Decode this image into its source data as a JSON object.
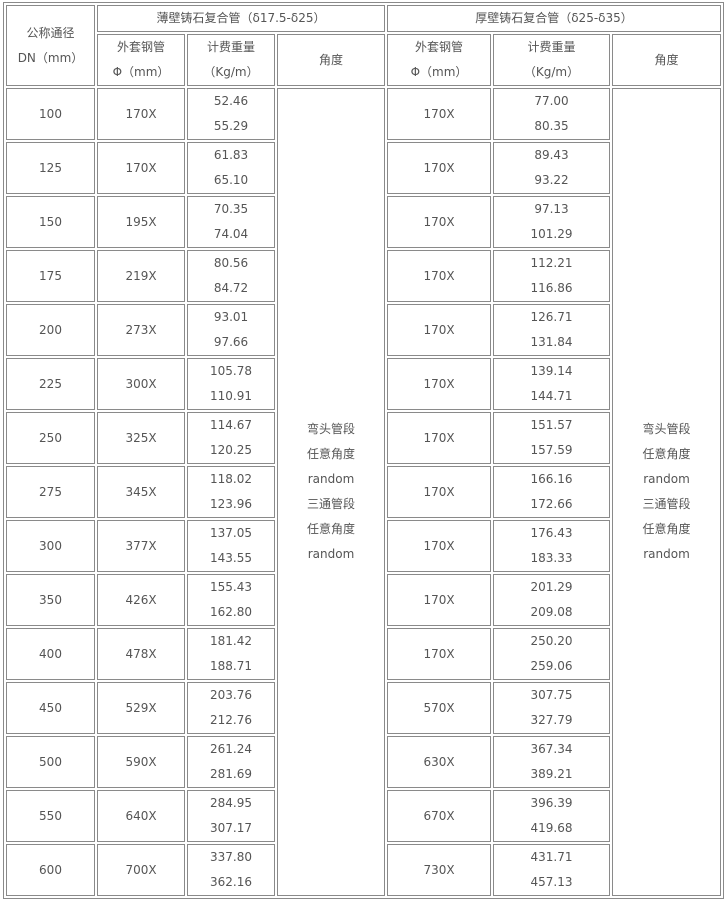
{
  "header": {
    "dn_label": "公称通径",
    "dn_unit": "DN（mm）",
    "thin_group": "薄壁铸石复合管（δ17.5-δ25）",
    "thick_group": "厚壁铸石复合管（δ25-δ35）",
    "steel_label": "外套钢管",
    "steel_unit": "Φ（mm）",
    "weight_label": "计费重量",
    "weight_unit": "（Kg/m）",
    "angle_label": "角度"
  },
  "angle_note": [
    "弯头管段",
    "任意角度",
    "random",
    "三通管段",
    "任意角度",
    "random"
  ],
  "rows": [
    {
      "dn": "100",
      "thin_steel": "170X",
      "thin_w": [
        "52.46",
        "55.29"
      ],
      "thick_steel": "170X",
      "thick_w": [
        "77.00",
        "80.35"
      ]
    },
    {
      "dn": "125",
      "thin_steel": "170X",
      "thin_w": [
        "61.83",
        "65.10"
      ],
      "thick_steel": "170X",
      "thick_w": [
        "89.43",
        "93.22"
      ]
    },
    {
      "dn": "150",
      "thin_steel": "195X",
      "thin_w": [
        "70.35",
        "74.04"
      ],
      "thick_steel": "170X",
      "thick_w": [
        "97.13",
        "101.29"
      ]
    },
    {
      "dn": "175",
      "thin_steel": "219X",
      "thin_w": [
        "80.56",
        "84.72"
      ],
      "thick_steel": "170X",
      "thick_w": [
        "112.21",
        "116.86"
      ]
    },
    {
      "dn": "200",
      "thin_steel": "273X",
      "thin_w": [
        "93.01",
        "97.66"
      ],
      "thick_steel": "170X",
      "thick_w": [
        "126.71",
        "131.84"
      ]
    },
    {
      "dn": "225",
      "thin_steel": "300X",
      "thin_w": [
        "105.78",
        "110.91"
      ],
      "thick_steel": "170X",
      "thick_w": [
        "139.14",
        "144.71"
      ]
    },
    {
      "dn": "250",
      "thin_steel": "325X",
      "thin_w": [
        "114.67",
        "120.25"
      ],
      "thick_steel": "170X",
      "thick_w": [
        "151.57",
        "157.59"
      ]
    },
    {
      "dn": "275",
      "thin_steel": "345X",
      "thin_w": [
        "118.02",
        "123.96"
      ],
      "thick_steel": "170X",
      "thick_w": [
        "166.16",
        "172.66"
      ]
    },
    {
      "dn": "300",
      "thin_steel": "377X",
      "thin_w": [
        "137.05",
        "143.55"
      ],
      "thick_steel": "170X",
      "thick_w": [
        "176.43",
        "183.33"
      ]
    },
    {
      "dn": "350",
      "thin_steel": "426X",
      "thin_w": [
        "155.43",
        "162.80"
      ],
      "thick_steel": "170X",
      "thick_w": [
        "201.29",
        "209.08"
      ]
    },
    {
      "dn": "400",
      "thin_steel": "478X",
      "thin_w": [
        "181.42",
        "188.71"
      ],
      "thick_steel": "170X",
      "thick_w": [
        "250.20",
        "259.06"
      ]
    },
    {
      "dn": "450",
      "thin_steel": "529X",
      "thin_w": [
        "203.76",
        "212.76"
      ],
      "thick_steel": "570X",
      "thick_w": [
        "307.75",
        "327.79"
      ]
    },
    {
      "dn": "500",
      "thin_steel": "590X",
      "thin_w": [
        "261.24",
        "281.69"
      ],
      "thick_steel": "630X",
      "thick_w": [
        "367.34",
        "389.21"
      ]
    },
    {
      "dn": "550",
      "thin_steel": "640X",
      "thin_w": [
        "284.95",
        "307.17"
      ],
      "thick_steel": "670X",
      "thick_w": [
        "396.39",
        "419.68"
      ]
    },
    {
      "dn": "600",
      "thin_steel": "700X",
      "thin_w": [
        "337.80",
        "362.16"
      ],
      "thick_steel": "730X",
      "thick_w": [
        "431.71",
        "457.13"
      ]
    }
  ]
}
